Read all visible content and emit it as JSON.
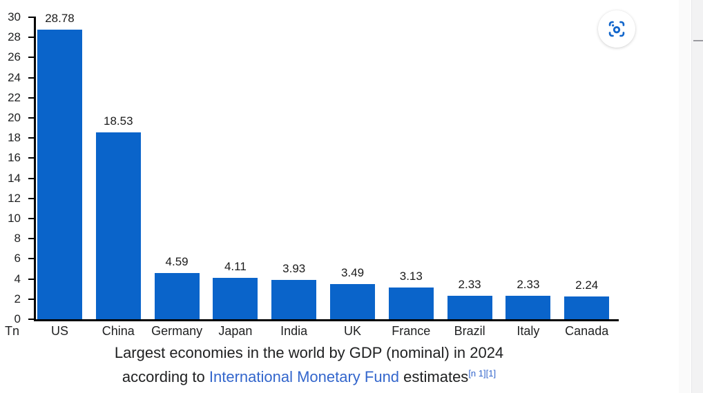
{
  "chart_data": {
    "type": "bar",
    "categories": [
      "US",
      "China",
      "Germany",
      "Japan",
      "India",
      "UK",
      "France",
      "Brazil",
      "Italy",
      "Canada"
    ],
    "values": [
      28.78,
      18.53,
      4.59,
      4.11,
      3.93,
      3.49,
      3.13,
      2.33,
      2.33,
      2.24
    ],
    "value_labels": [
      "28.78",
      "18.53",
      "4.59",
      "4.11",
      "3.93",
      "3.49",
      "3.13",
      "2.33",
      "2.33",
      "2.24"
    ],
    "title": "Largest economies in the world by GDP (nominal) in 2024 according to International Monetary Fund estimates",
    "xlabel": "",
    "ylabel": "Tn",
    "unit_label": "Tn",
    "ylim": [
      0,
      30
    ],
    "yticks": [
      0,
      2,
      4,
      6,
      8,
      10,
      12,
      14,
      16,
      18,
      20,
      22,
      24,
      26,
      28,
      30
    ],
    "grid": false,
    "legend": null,
    "bar_color": "#0a64ca"
  },
  "caption": {
    "line1": "Largest economies in the world by GDP (nominal) in 2024",
    "line2_before_link": "according to ",
    "link": "International Monetary Fund",
    "line2_after_link": " estimates",
    "footnote_ref": "[n 1]",
    "citation_ref": "[1]"
  },
  "controls": {
    "image_search_icon": "lens-scan-icon"
  },
  "colors": {
    "bar": "#0a64ca",
    "link": "#3366cc",
    "lens_icon": "#1266cb",
    "text": "#202122",
    "axis": "#000000"
  }
}
